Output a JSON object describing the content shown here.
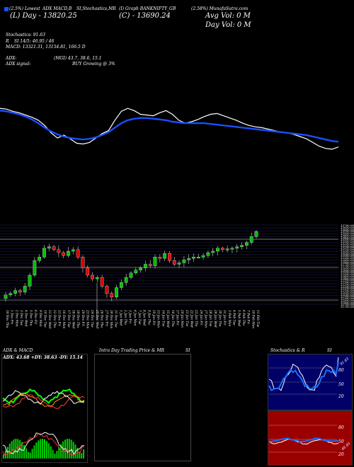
{
  "header": {
    "line1_left": "(2.5%) Lowest",
    "line1_mid": "ADX MACD,B",
    "line1_mid2": "SI,Stochastics,MR",
    "line1_mid3": "(I) Graph BANKNIFTY_GB",
    "line1_right": "(2.58%) MunafaSutra.com",
    "low_day": "(L) Day - 13820.25",
    "close": "(C) - 13690.24",
    "avg_vol": "Avg Vol: 0  M",
    "day_vol": "Day Vol: 0   M",
    "stochastics": "Stochastics: 91.63",
    "rsi": "SI 14/5: 46.95 / 46",
    "rsi_prefix": "R",
    "macd": "MACD: 13321.31, 13154.81, 166.5 D",
    "adx": "ADX:",
    "adx_values": "(MGI) 43.7, 38.6, 15.1",
    "adx_signal_label": "ADX  signal:",
    "adx_signal_value": "BUY Growing @ 3%"
  },
  "price_scale": [
    "13700.00",
    "13650.00",
    "13600.00",
    "13550.00",
    "13500.00",
    "13450.00",
    "13400.00",
    "13350.00",
    "13300.00",
    "13250.00",
    "13200.00",
    "13150.00",
    "13100.00",
    "13050.00",
    "13000.00",
    "12950.00",
    "12900.00",
    "12850.00",
    "12800.00",
    "12750.00",
    "12700.00",
    "12650.00",
    "12600.00",
    "12550.00",
    "12500.00",
    "12450.00",
    "12400.00",
    "12350.00",
    "12300.00",
    "12250.00",
    "12200.00",
    "12150.00",
    "12100.00",
    "12050.00",
    "12000.00",
    "11950.00",
    "11900.00",
    "11850.00",
    "11800.00",
    "11750.00",
    "11700.00"
  ],
  "dates": [
    "30 Nov Thu",
    "1 Dec Fri",
    "2 Dec Mon",
    "3 Dec Tue",
    "4 Dec Wed",
    "5 Dec Thu",
    "6 Dec Fri",
    "9 Dec Mon",
    "10 Dec Tue",
    "11 Dec Wed",
    "12 Dec Thu",
    "13 Dec Fri",
    "16 Dec Mon",
    "17 Dec Tue",
    "18 Dec Wed",
    "19 Dec Thu",
    "20 Dec Fri",
    "23 Dec Mon",
    "24 Dec Tue",
    "25 Dec Wed",
    "26 Dec Thu",
    "27 Dec Fri",
    "30 Dec Mon",
    "31 Dec Tue",
    "1 Jan Wed",
    "2 Jan Thu",
    "3 Jan Fri",
    "6 Jan Mon",
    "7 Jan Tue",
    "8 Jan Wed",
    "9 Jan Thu",
    "10 Jan Fri",
    "13 Jan Mon",
    "14 Jan Tue",
    "15 Jan Wed",
    "16 Jan Thu",
    "17 Jan Fri",
    "20 Jan Mon",
    "21 Jan Tue",
    "22 Jan Wed",
    "23 Jan Thu",
    "24 Jan Fri",
    "27 Jan Mon",
    "28 Jan Tue",
    "29 Jan Wed",
    "30 Jan Thu",
    "31 Jan Fri",
    "3 Feb Mon",
    "4 Feb Tue",
    "5 Feb Wed",
    "6 Feb Thu",
    "7 Feb Fri",
    "10 Feb Mon",
    "11 Feb Tue"
  ],
  "bottom_panels": {
    "adx_title": "ADX  & MACD",
    "adx_readout": "ADX: 43.68  +DY: 38.63 -DY: 15.14",
    "intraday_title": "Intra Day Trading Price  & MR",
    "intraday_title_2": "SI",
    "stoch_title": "Stochastics & R",
    "stoch_title_2": "SI",
    "stoch_label": "91.63",
    "stoch_levels": [
      "80",
      "50",
      "20"
    ],
    "rsi_levels": [
      "80",
      "50",
      "20"
    ],
    "rsi_label": "46.95"
  },
  "colors": {
    "background": "#000000",
    "bull": "#00c000",
    "bear": "#e00000",
    "ma_blue": "#1a4fff",
    "price_white": "#ffffff",
    "rsi_panel": "#9a0000",
    "stoch_panel": "#000066"
  },
  "chart_data": {
    "type": "line",
    "series": [
      {
        "name": "Close",
        "values": [
          0.78,
          0.77,
          0.74,
          0.72,
          0.69,
          0.66,
          0.62,
          0.55,
          0.45,
          0.38,
          0.42,
          0.37,
          0.31,
          0.3,
          0.32,
          0.38,
          0.44,
          0.48,
          0.62,
          0.74,
          0.78,
          0.75,
          0.7,
          0.69,
          0.68,
          0.72,
          0.75,
          0.7,
          0.62,
          0.58,
          0.6,
          0.63,
          0.67,
          0.7,
          0.71,
          0.68,
          0.65,
          0.62,
          0.58,
          0.55,
          0.53,
          0.52,
          0.5,
          0.48,
          0.46,
          0.45,
          0.43,
          0.4,
          0.37,
          0.32,
          0.27,
          0.24,
          0.23,
          0.26
        ]
      },
      {
        "name": "MA",
        "values": [
          0.75,
          0.74,
          0.72,
          0.7,
          0.67,
          0.63,
          0.58,
          0.52,
          0.47,
          0.43,
          0.4,
          0.38,
          0.37,
          0.36,
          0.37,
          0.39,
          0.42,
          0.46,
          0.52,
          0.58,
          0.62,
          0.64,
          0.65,
          0.65,
          0.64,
          0.63,
          0.62,
          0.6,
          0.59,
          0.58,
          0.58,
          0.58,
          0.58,
          0.57,
          0.56,
          0.55,
          0.54,
          0.53,
          0.52,
          0.51,
          0.5,
          0.49,
          0.48,
          0.47,
          0.46,
          0.45,
          0.44,
          0.43,
          0.42,
          0.4,
          0.38,
          0.36,
          0.34,
          0.33
        ]
      }
    ]
  }
}
